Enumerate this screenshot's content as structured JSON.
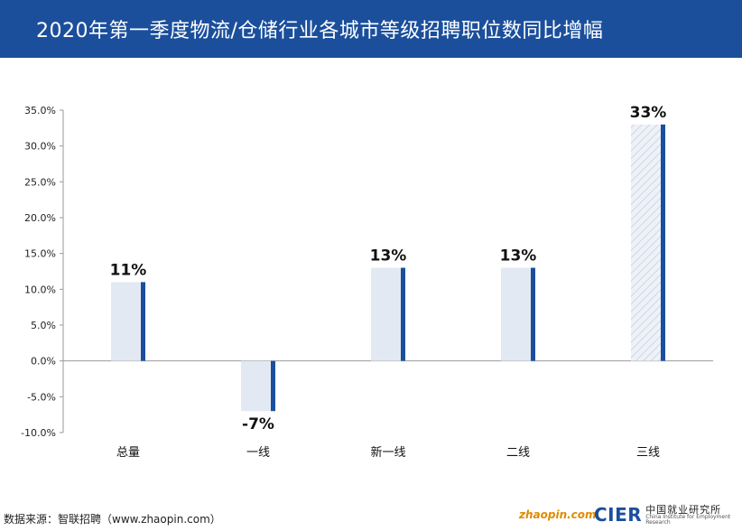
{
  "header": {
    "title": "2020年第一季度物流/仓储行业各城市等级招聘职位数同比增幅"
  },
  "footer": {
    "source": "数据来源：智联招聘（www.zhaopin.com）",
    "logo_zhaopin": "zhaopin.com",
    "logo_cier": "CIER",
    "logo_cier_cn": "中国就业研究所",
    "logo_cier_en": "China Institute for Employment Research"
  },
  "colors": {
    "title_bg": "#1b4f9c",
    "bar_fill": "#e3e9f3",
    "bar_accent": "#1b4f9c",
    "axis": "#999999",
    "hatch": "#cdd6e6"
  },
  "chart_data": {
    "type": "bar",
    "categories": [
      "总量",
      "一线",
      "新一线",
      "二线",
      "三线"
    ],
    "values": [
      11,
      -7,
      13,
      13,
      33
    ],
    "data_labels": [
      "11%",
      "-7%",
      "13%",
      "13%",
      "33%"
    ],
    "yticks": [
      "35.0%",
      "30.0%",
      "25.0%",
      "20.0%",
      "15.0%",
      "10.0%",
      "5.0%",
      "0.0%",
      "-5.0%",
      "-10.0%"
    ],
    "ylim": [
      -10,
      35
    ],
    "grid": false,
    "hatched_categories": [
      "三线"
    ]
  }
}
